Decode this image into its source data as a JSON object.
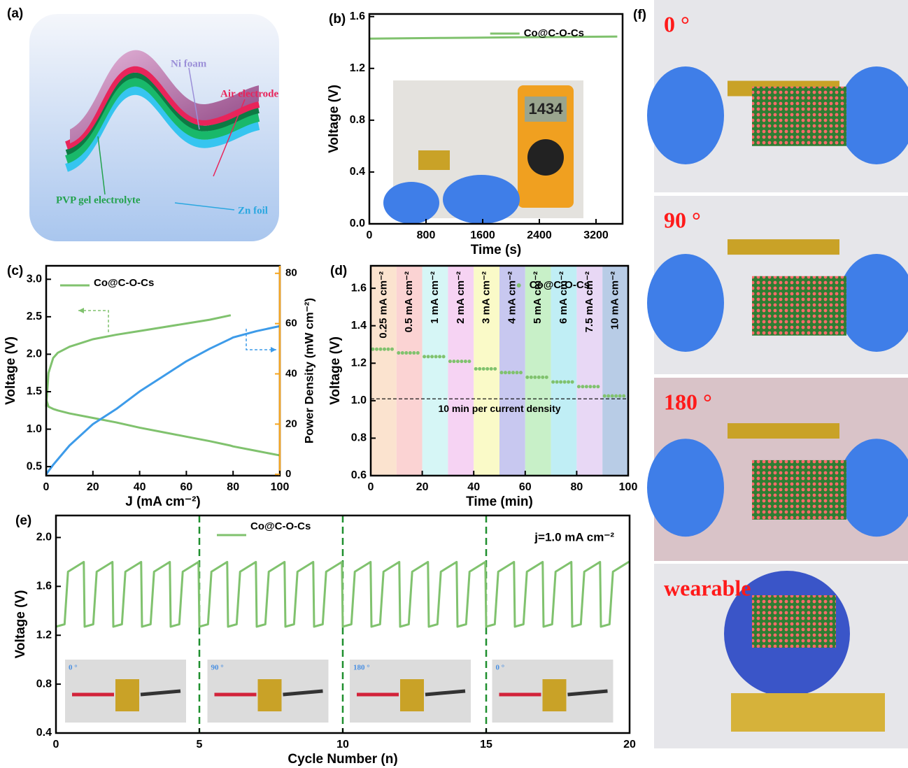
{
  "diagram": {
    "panel_label": "(a)",
    "labels": [
      "Ni foam",
      "Air electrode",
      "PVP gel electrolyte",
      "Zn foil"
    ]
  },
  "photos": {
    "panel_label": "(f)",
    "labels": [
      "0 °",
      "90 °",
      "180 °",
      "wearable"
    ]
  },
  "chart_data": [
    {
      "type": "line",
      "panel_label": "(b)",
      "xlabel": "Time (s)",
      "ylabel": "Voltage (V)",
      "xlim": [
        0,
        3575
      ],
      "ylim": [
        0,
        1.62
      ],
      "xticks": [
        0,
        800,
        1600,
        2400,
        3200
      ],
      "yticks": [
        {
          "value": 0,
          "label": "0.0"
        },
        0.4,
        0.8,
        1.2,
        1.6
      ],
      "legend": "upper right",
      "inset_text": "1434",
      "x": [
        0,
        500,
        1000,
        1500,
        2000,
        2500,
        3000,
        3500
      ],
      "series": [
        {
          "name": "Co@C-O-Cs",
          "color": "#80c26e",
          "values": [
            1.43,
            1.432,
            1.435,
            1.437,
            1.44,
            1.442,
            1.444,
            1.446
          ]
        }
      ]
    },
    {
      "type": "line",
      "panel_label": "(c)",
      "xlabel": "J (mA cm⁻²)",
      "ylabel": "Voltage (V)",
      "y2label": "Power Density (mW cm⁻²)",
      "xlim": [
        0,
        100
      ],
      "ylim": [
        0.38,
        3.18
      ],
      "y2lim": [
        -0.5,
        83
      ],
      "xticks": [
        0,
        20,
        40,
        60,
        80,
        100
      ],
      "yticks": [
        0.5,
        {
          "value": 1,
          "label": "1.0"
        },
        1.5,
        {
          "value": 2,
          "label": "2.0"
        },
        2.5,
        {
          "value": 3,
          "label": "3.0"
        }
      ],
      "y2ticks": [
        0,
        20,
        40,
        60,
        80
      ],
      "y2color": "#f5a623",
      "legend": "upper left",
      "x": [
        0,
        1,
        3,
        5,
        10,
        20,
        30,
        40,
        50,
        60,
        70,
        79,
        80,
        90,
        100
      ],
      "series": [
        {
          "name": "Co@C-O-Cs",
          "color": "#80c26e",
          "values": [
            1.3,
            1.75,
            1.95,
            2.02,
            2.1,
            2.2,
            2.26,
            2.31,
            2.36,
            2.41,
            2.46,
            2.52,
            null,
            null,
            null
          ]
        },
        {
          "color": "#80c26e",
          "values": [
            1.4,
            1.3,
            1.27,
            1.25,
            1.21,
            1.15,
            1.09,
            1.02,
            0.96,
            0.9,
            0.84,
            0.78,
            0.77,
            0.71,
            0.65
          ]
        },
        {
          "color": "#3d9be9",
          "axis": "y2",
          "values": [
            0,
            1.3,
            3.8,
            6,
            11.5,
            20,
            26,
            33,
            39,
            45,
            50,
            54,
            54.5,
            57,
            59
          ]
        }
      ]
    },
    {
      "type": "step",
      "panel_label": "(d)",
      "xlabel": "Time (min)",
      "ylabel": "Voltage (V)",
      "xlim": [
        0,
        100
      ],
      "ylim": [
        0.6,
        1.72
      ],
      "xticks": [
        0,
        20,
        40,
        60,
        80,
        100
      ],
      "yticks": [
        0.6,
        0.8,
        {
          "value": 1,
          "label": "1.0"
        },
        1.2,
        1.4,
        1.6
      ],
      "legend": "upper right",
      "bands": {
        "edges": [
          0,
          10,
          20,
          30,
          40,
          50,
          60,
          70,
          80,
          90,
          100
        ],
        "labels": [
          "0.25 mA cm⁻²",
          "0.5 mA cm⁻²",
          "1 mA cm⁻²",
          "2 mA cm⁻²",
          "3 mA cm⁻²",
          "4 mA cm⁻²",
          "5 mA cm⁻²",
          "6 mA cm⁻²",
          "7.5 mA cm⁻²",
          "10 mA cm⁻²"
        ],
        "colors": [
          "#fbe3cf",
          "#fbd3d3",
          "#d6f6f6",
          "#f6d3f3",
          "#fafac8",
          "#c8c8f0",
          "#c8f0c8",
          "#c0eef5",
          "#e8d8f5",
          "#b8cce6"
        ]
      },
      "hline": {
        "value": 1.01,
        "label": "10 min per current density"
      },
      "series": [
        {
          "name": "Co@C-O-Cs",
          "color": "#80c26e",
          "values": [
            1.275,
            1.255,
            1.235,
            1.21,
            1.17,
            1.15,
            1.125,
            1.1,
            1.075,
            1.025
          ]
        }
      ]
    },
    {
      "type": "line",
      "panel_label": "(e)",
      "xlabel": "Cycle Number (n)",
      "ylabel": "Voltage (V)",
      "xlim": [
        0,
        20
      ],
      "ylim": [
        0.4,
        2.18
      ],
      "xticks": [
        0,
        5,
        10,
        15,
        20
      ],
      "yticks": [
        0.4,
        0.8,
        1.2,
        1.6,
        {
          "value": 2,
          "label": "2.0"
        }
      ],
      "legend": "upper center",
      "annotation": "j=1.0 mA cm⁻²",
      "vlines": [
        5,
        10,
        15
      ],
      "insets": [
        "0 °",
        "90 °",
        "180 °",
        "0 °"
      ],
      "x": [
        0,
        0.3,
        0.42,
        0.97,
        1,
        1.3,
        1.42,
        1.97,
        2,
        2.3,
        2.42,
        2.97,
        3,
        3.3,
        3.42,
        3.97,
        4,
        4.3,
        4.42,
        4.97,
        5,
        5.3,
        5.42,
        5.97,
        6,
        6.3,
        6.42,
        6.97,
        7,
        7.3,
        7.42,
        7.97,
        8,
        8.3,
        8.42,
        8.97,
        9,
        9.3,
        9.42,
        9.97,
        10,
        10.3,
        10.42,
        10.97,
        11,
        11.3,
        11.42,
        11.97,
        12,
        12.3,
        12.42,
        12.97,
        13,
        13.3,
        13.42,
        13.97,
        14,
        14.3,
        14.42,
        14.97,
        15,
        15.3,
        15.42,
        15.97,
        16,
        16.3,
        16.42,
        16.97,
        17,
        17.3,
        17.42,
        17.97,
        18,
        18.3,
        18.42,
        18.97,
        19,
        19.3,
        19.42,
        19.97,
        20
      ],
      "series": [
        {
          "name": "Co@C-O-Cs",
          "color": "#80c26e",
          "values": [
            1.27,
            1.29,
            1.72,
            1.8,
            1.27,
            1.29,
            1.72,
            1.8,
            1.27,
            1.29,
            1.72,
            1.8,
            1.27,
            1.29,
            1.72,
            1.8,
            1.27,
            1.29,
            1.72,
            1.8,
            1.27,
            1.29,
            1.72,
            1.8,
            1.27,
            1.29,
            1.72,
            1.8,
            1.27,
            1.29,
            1.72,
            1.8,
            1.27,
            1.29,
            1.72,
            1.8,
            1.27,
            1.29,
            1.72,
            1.8,
            1.27,
            1.29,
            1.72,
            1.8,
            1.27,
            1.29,
            1.72,
            1.8,
            1.27,
            1.29,
            1.72,
            1.8,
            1.27,
            1.29,
            1.72,
            1.8,
            1.27,
            1.29,
            1.72,
            1.8,
            1.27,
            1.29,
            1.72,
            1.8,
            1.27,
            1.29,
            1.72,
            1.8,
            1.27,
            1.29,
            1.72,
            1.8,
            1.27,
            1.29,
            1.72,
            1.8,
            1.27,
            1.29,
            1.72,
            1.8,
            1.8
          ]
        }
      ]
    }
  ]
}
